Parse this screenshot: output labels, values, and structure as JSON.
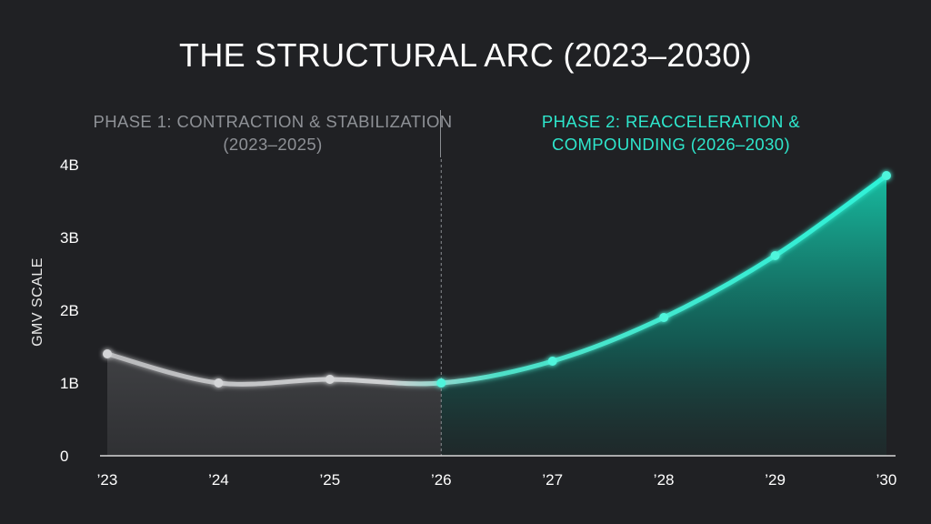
{
  "chart_data": {
    "type": "area",
    "title": "THE STRUCTURAL ARC (2023–2030)",
    "ylabel": "GMV SCALE",
    "xlabel": "",
    "categories": [
      "’23",
      "’24",
      "’25",
      "’26",
      "’27",
      "’28",
      "’29",
      "’30"
    ],
    "values": [
      1.4,
      1.0,
      1.05,
      1.0,
      1.3,
      1.9,
      2.75,
      3.85
    ],
    "ylim": [
      0,
      4
    ],
    "yticks": [
      {
        "value": 0,
        "label": "0"
      },
      {
        "value": 1,
        "label": "1B"
      },
      {
        "value": 2,
        "label": "2B"
      },
      {
        "value": 3,
        "label": "3B"
      },
      {
        "value": 4,
        "label": "4B"
      }
    ],
    "grid": false,
    "phases": [
      {
        "label": "PHASE 1: CONTRACTION & STABILIZATION (2023–2025)",
        "start_index": 0,
        "end_index": 3,
        "color": "#b8b9bb"
      },
      {
        "label": "PHASE 2: REACCELERATION & COMPOUNDING (2026–2030)",
        "start_index": 3,
        "end_index": 7,
        "color": "#2ee6cc"
      }
    ],
    "phase_boundary_index": 3
  }
}
